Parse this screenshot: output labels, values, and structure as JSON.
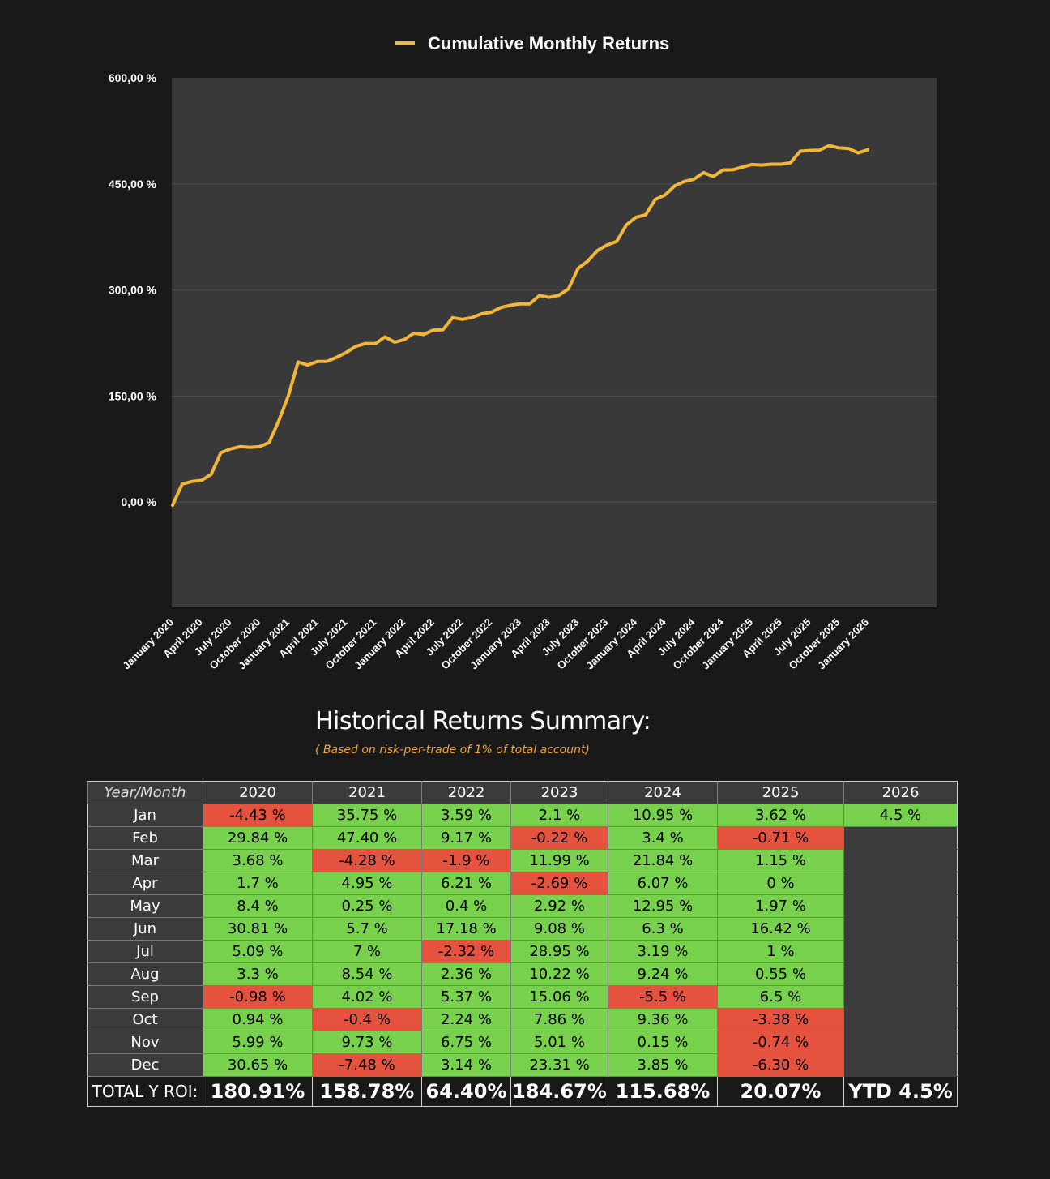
{
  "chart_data": {
    "type": "line",
    "title": "Cumulative Monthly Returns",
    "legend": [
      "Cumulative Monthly Returns"
    ],
    "legend_position": "top-center",
    "series_color": "#f2b63b",
    "ylim": [
      -150,
      600
    ],
    "yticks": [
      0,
      150,
      300,
      450,
      600
    ],
    "ytick_labels": [
      "0,00 %",
      "150,00 %",
      "300,00 %",
      "450,00 %",
      "600,00 %"
    ],
    "grid": true,
    "xtick_labels": [
      "January 2020",
      "April 2020",
      "July 2020",
      "October 2020",
      "January 2021",
      "April 2021",
      "July 2021",
      "October 2021",
      "January 2022",
      "April 2022",
      "July 2022",
      "October 2022",
      "January 2023",
      "April 2023",
      "July 2023",
      "October 2023",
      "January 2024",
      "April 2024",
      "July 2024",
      "October 2024",
      "January 2025",
      "April 2025",
      "July 2025",
      "October 2025",
      "January 2026"
    ],
    "x": [
      "Jan 2020",
      "Feb 2020",
      "Mar 2020",
      "Apr 2020",
      "May 2020",
      "Jun 2020",
      "Jul 2020",
      "Aug 2020",
      "Sep 2020",
      "Oct 2020",
      "Nov 2020",
      "Dec 2020",
      "Jan 2021",
      "Feb 2021",
      "Mar 2021",
      "Apr 2021",
      "May 2021",
      "Jun 2021",
      "Jul 2021",
      "Aug 2021",
      "Sep 2021",
      "Oct 2021",
      "Nov 2021",
      "Dec 2021",
      "Jan 2022",
      "Feb 2022",
      "Mar 2022",
      "Apr 2022",
      "May 2022",
      "Jun 2022",
      "Jul 2022",
      "Aug 2022",
      "Sep 2022",
      "Oct 2022",
      "Nov 2022",
      "Dec 2022",
      "Jan 2023",
      "Feb 2023",
      "Mar 2023",
      "Apr 2023",
      "May 2023",
      "Jun 2023",
      "Jul 2023",
      "Aug 2023",
      "Sep 2023",
      "Oct 2023",
      "Nov 2023",
      "Dec 2023",
      "Jan 2024",
      "Feb 2024",
      "Mar 2024",
      "Apr 2024",
      "May 2024",
      "Jun 2024",
      "Jul 2024",
      "Aug 2024",
      "Sep 2024",
      "Oct 2024",
      "Nov 2024",
      "Dec 2024",
      "Jan 2025",
      "Feb 2025",
      "Mar 2025",
      "Apr 2025",
      "May 2025",
      "Jun 2025",
      "Jul 2025",
      "Aug 2025",
      "Sep 2025",
      "Oct 2025",
      "Nov 2025",
      "Dec 2025",
      "Jan 2026"
    ],
    "values": [
      -4.43,
      25.41,
      29.09,
      30.79,
      39.19,
      70.0,
      75.09,
      78.39,
      77.41,
      78.35,
      84.34,
      114.99,
      150.74,
      198.14,
      193.86,
      198.81,
      199.06,
      204.76,
      211.76,
      220.3,
      224.32,
      223.92,
      233.65,
      226.17,
      229.76,
      238.93,
      237.03,
      243.24,
      243.64,
      260.82,
      258.5,
      260.86,
      266.23,
      268.47,
      275.22,
      278.36,
      280.46,
      280.24,
      292.23,
      289.54,
      292.46,
      301.54,
      330.49,
      340.71,
      355.77,
      363.63,
      368.64,
      391.95,
      402.9,
      406.3,
      428.14,
      434.21,
      447.16,
      453.46,
      456.65,
      465.89,
      460.39,
      469.75,
      469.9,
      473.75,
      477.37,
      476.66,
      477.81,
      477.81,
      479.78,
      496.2,
      497.2,
      497.75,
      504.25,
      500.87,
      500.13,
      493.83,
      498.33
    ]
  },
  "summary": {
    "title": "Historical Returns Summary:",
    "subtitle": "( Based on risk-per-trade of 1% of total account)",
    "corner_label": "Year/Month",
    "years": [
      "2020",
      "2021",
      "2022",
      "2023",
      "2024",
      "2025",
      "2026"
    ],
    "rows": [
      {
        "month": "Jan",
        "cells": [
          {
            "v": "-4.43 %",
            "neg": true
          },
          {
            "v": "35.75 %"
          },
          {
            "v": "3.59 %"
          },
          {
            "v": "2.1 %"
          },
          {
            "v": "10.95 %"
          },
          {
            "v": "3.62 %"
          },
          {
            "v": "4.5 %"
          }
        ]
      },
      {
        "month": "Feb",
        "cells": [
          {
            "v": "29.84 %"
          },
          {
            "v": "47.40 %"
          },
          {
            "v": "9.17 %"
          },
          {
            "v": "-0.22 %",
            "neg": true
          },
          {
            "v": "3.4 %"
          },
          {
            "v": "-0.71 %",
            "neg": true
          },
          {
            "v": ""
          }
        ]
      },
      {
        "month": "Mar",
        "cells": [
          {
            "v": "3.68 %"
          },
          {
            "v": "-4.28 %",
            "neg": true
          },
          {
            "v": "-1.9 %",
            "neg": true
          },
          {
            "v": "11.99 %"
          },
          {
            "v": "21.84 %"
          },
          {
            "v": "1.15 %"
          },
          {
            "v": ""
          }
        ]
      },
      {
        "month": "Apr",
        "cells": [
          {
            "v": "1.7 %"
          },
          {
            "v": "4.95 %"
          },
          {
            "v": "6.21 %"
          },
          {
            "v": "-2.69 %",
            "neg": true
          },
          {
            "v": "6.07 %"
          },
          {
            "v": "0 %"
          },
          {
            "v": ""
          }
        ]
      },
      {
        "month": "May",
        "cells": [
          {
            "v": "8.4 %"
          },
          {
            "v": "0.25 %"
          },
          {
            "v": "0.4 %"
          },
          {
            "v": "2.92 %"
          },
          {
            "v": "12.95 %"
          },
          {
            "v": "1.97 %"
          },
          {
            "v": ""
          }
        ]
      },
      {
        "month": "Jun",
        "cells": [
          {
            "v": "30.81 %"
          },
          {
            "v": "5.7 %"
          },
          {
            "v": "17.18 %"
          },
          {
            "v": "9.08 %"
          },
          {
            "v": "6.3 %"
          },
          {
            "v": "16.42 %"
          },
          {
            "v": ""
          }
        ]
      },
      {
        "month": "Jul",
        "cells": [
          {
            "v": "5.09 %"
          },
          {
            "v": "7 %"
          },
          {
            "v": "-2.32 %",
            "neg": true
          },
          {
            "v": "28.95 %"
          },
          {
            "v": "3.19 %"
          },
          {
            "v": "1 %"
          },
          {
            "v": ""
          }
        ]
      },
      {
        "month": "Aug",
        "cells": [
          {
            "v": "3.3 %"
          },
          {
            "v": "8.54 %"
          },
          {
            "v": "2.36 %"
          },
          {
            "v": "10.22 %"
          },
          {
            "v": "9.24 %"
          },
          {
            "v": "0.55 %"
          },
          {
            "v": ""
          }
        ]
      },
      {
        "month": "Sep",
        "cells": [
          {
            "v": "-0.98 %",
            "neg": true
          },
          {
            "v": "4.02 %"
          },
          {
            "v": "5.37 %"
          },
          {
            "v": "15.06 %"
          },
          {
            "v": "-5.5 %",
            "neg": true
          },
          {
            "v": "6.5 %"
          },
          {
            "v": ""
          }
        ]
      },
      {
        "month": "Oct",
        "cells": [
          {
            "v": "0.94 %"
          },
          {
            "v": "-0.4 %",
            "neg": true
          },
          {
            "v": "2.24 %"
          },
          {
            "v": "7.86 %"
          },
          {
            "v": "9.36 %"
          },
          {
            "v": "-3.38 %",
            "neg": true
          },
          {
            "v": ""
          }
        ]
      },
      {
        "month": "Nov",
        "cells": [
          {
            "v": "5.99 %"
          },
          {
            "v": "9.73 %"
          },
          {
            "v": "6.75 %"
          },
          {
            "v": "5.01 %"
          },
          {
            "v": "0.15 %"
          },
          {
            "v": "-0.74 %",
            "neg": true
          },
          {
            "v": ""
          }
        ]
      },
      {
        "month": "Dec",
        "cells": [
          {
            "v": "30.65 %"
          },
          {
            "v": "-7.48 %",
            "neg": true
          },
          {
            "v": "3.14 %"
          },
          {
            "v": "23.31 %"
          },
          {
            "v": "3.85 %"
          },
          {
            "v": "-6.30 %",
            "neg": true
          },
          {
            "v": ""
          }
        ]
      }
    ],
    "total_label": "TOTAL Y ROI:",
    "totals": [
      "180.91%",
      "158.78%",
      "64.40%",
      "184.67%",
      "115.68%",
      "20.07%",
      "YTD 4.5%"
    ]
  },
  "colors": {
    "positive": "#77d14d",
    "negative": "#e5533e",
    "line": "#f2b63b",
    "plot_bg": "#393939",
    "page_bg": "#191919"
  }
}
